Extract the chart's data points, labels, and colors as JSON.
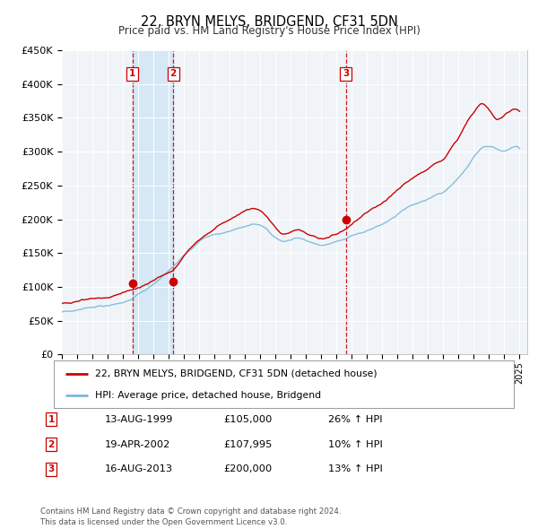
{
  "title": "22, BRYN MELYS, BRIDGEND, CF31 5DN",
  "subtitle": "Price paid vs. HM Land Registry's House Price Index (HPI)",
  "hpi_color": "#7ab8d9",
  "price_color": "#cc0000",
  "sale_marker_color": "#cc0000",
  "bg_color": "#ffffff",
  "plot_bg_color": "#f0f4f8",
  "grid_color": "#ffffff",
  "shaded_region_color": "#d6e8f5",
  "dashed_line_color": "#cc0000",
  "ylim": [
    0,
    450000
  ],
  "yticks": [
    0,
    50000,
    100000,
    150000,
    200000,
    250000,
    300000,
    350000,
    400000,
    450000
  ],
  "ytick_labels": [
    "£0",
    "£50K",
    "£100K",
    "£150K",
    "£200K",
    "£250K",
    "£300K",
    "£350K",
    "£400K",
    "£450K"
  ],
  "sales": [
    {
      "date_num": 1999.617,
      "price": 105000,
      "label": "1"
    },
    {
      "date_num": 2002.298,
      "price": 107995,
      "label": "2"
    },
    {
      "date_num": 2013.617,
      "price": 200000,
      "label": "3"
    }
  ],
  "legend_house_label": "22, BRYN MELYS, BRIDGEND, CF31 5DN (detached house)",
  "legend_hpi_label": "HPI: Average price, detached house, Bridgend",
  "table_rows": [
    {
      "num": "1",
      "date": "13-AUG-1999",
      "price": "£105,000",
      "change": "26% ↑ HPI"
    },
    {
      "num": "2",
      "date": "19-APR-2002",
      "price": "£107,995",
      "change": "10% ↑ HPI"
    },
    {
      "num": "3",
      "date": "16-AUG-2013",
      "price": "£200,000",
      "change": "13% ↑ HPI"
    }
  ],
  "footnote": "Contains HM Land Registry data © Crown copyright and database right 2024.\nThis data is licensed under the Open Government Licence v3.0.",
  "xmin": 1995.0,
  "xmax": 2025.5,
  "hpi_points": [
    [
      1995.0,
      63000
    ],
    [
      1995.5,
      65000
    ],
    [
      1996.0,
      67000
    ],
    [
      1996.5,
      69000
    ],
    [
      1997.0,
      71000
    ],
    [
      1997.5,
      73000
    ],
    [
      1998.0,
      75000
    ],
    [
      1998.5,
      77000
    ],
    [
      1999.0,
      79000
    ],
    [
      1999.5,
      82000
    ],
    [
      2000.0,
      90000
    ],
    [
      2000.5,
      97000
    ],
    [
      2001.0,
      105000
    ],
    [
      2001.5,
      115000
    ],
    [
      2002.0,
      125000
    ],
    [
      2002.5,
      135000
    ],
    [
      2003.0,
      148000
    ],
    [
      2003.5,
      158000
    ],
    [
      2004.0,
      168000
    ],
    [
      2004.5,
      173000
    ],
    [
      2005.0,
      176000
    ],
    [
      2005.5,
      178000
    ],
    [
      2006.0,
      182000
    ],
    [
      2006.5,
      186000
    ],
    [
      2007.0,
      190000
    ],
    [
      2007.5,
      194000
    ],
    [
      2008.0,
      192000
    ],
    [
      2008.5,
      185000
    ],
    [
      2009.0,
      175000
    ],
    [
      2009.5,
      170000
    ],
    [
      2010.0,
      173000
    ],
    [
      2010.5,
      176000
    ],
    [
      2011.0,
      172000
    ],
    [
      2011.5,
      168000
    ],
    [
      2012.0,
      165000
    ],
    [
      2012.5,
      167000
    ],
    [
      2013.0,
      170000
    ],
    [
      2013.5,
      173000
    ],
    [
      2014.0,
      178000
    ],
    [
      2014.5,
      182000
    ],
    [
      2015.0,
      186000
    ],
    [
      2015.5,
      190000
    ],
    [
      2016.0,
      196000
    ],
    [
      2016.5,
      202000
    ],
    [
      2017.0,
      210000
    ],
    [
      2017.5,
      218000
    ],
    [
      2018.0,
      224000
    ],
    [
      2018.5,
      228000
    ],
    [
      2019.0,
      232000
    ],
    [
      2019.5,
      238000
    ],
    [
      2020.0,
      242000
    ],
    [
      2020.5,
      252000
    ],
    [
      2021.0,
      264000
    ],
    [
      2021.5,
      278000
    ],
    [
      2022.0,
      295000
    ],
    [
      2022.5,
      308000
    ],
    [
      2023.0,
      312000
    ],
    [
      2023.5,
      308000
    ],
    [
      2024.0,
      305000
    ],
    [
      2024.5,
      310000
    ],
    [
      2025.0,
      308000
    ]
  ],
  "price_points": [
    [
      1995.0,
      75000
    ],
    [
      1995.5,
      77000
    ],
    [
      1996.0,
      79000
    ],
    [
      1996.5,
      81000
    ],
    [
      1997.0,
      83000
    ],
    [
      1997.5,
      85000
    ],
    [
      1998.0,
      87000
    ],
    [
      1998.5,
      90000
    ],
    [
      1999.0,
      93000
    ],
    [
      1999.5,
      97000
    ],
    [
      2000.0,
      102000
    ],
    [
      2000.5,
      107000
    ],
    [
      2001.0,
      112000
    ],
    [
      2001.5,
      118000
    ],
    [
      2002.0,
      124000
    ],
    [
      2002.5,
      132000
    ],
    [
      2003.0,
      148000
    ],
    [
      2003.5,
      160000
    ],
    [
      2004.0,
      172000
    ],
    [
      2004.5,
      180000
    ],
    [
      2005.0,
      188000
    ],
    [
      2005.5,
      195000
    ],
    [
      2006.0,
      200000
    ],
    [
      2006.5,
      208000
    ],
    [
      2007.0,
      214000
    ],
    [
      2007.5,
      218000
    ],
    [
      2008.0,
      215000
    ],
    [
      2008.5,
      205000
    ],
    [
      2009.0,
      192000
    ],
    [
      2009.5,
      183000
    ],
    [
      2010.0,
      185000
    ],
    [
      2010.5,
      188000
    ],
    [
      2011.0,
      182000
    ],
    [
      2011.5,
      178000
    ],
    [
      2012.0,
      175000
    ],
    [
      2012.5,
      178000
    ],
    [
      2013.0,
      182000
    ],
    [
      2013.5,
      188000
    ],
    [
      2014.0,
      196000
    ],
    [
      2014.5,
      205000
    ],
    [
      2015.0,
      214000
    ],
    [
      2015.5,
      222000
    ],
    [
      2016.0,
      230000
    ],
    [
      2016.5,
      238000
    ],
    [
      2017.0,
      248000
    ],
    [
      2017.5,
      258000
    ],
    [
      2018.0,
      265000
    ],
    [
      2018.5,
      272000
    ],
    [
      2019.0,
      278000
    ],
    [
      2019.5,
      286000
    ],
    [
      2020.0,
      292000
    ],
    [
      2020.5,
      308000
    ],
    [
      2021.0,
      325000
    ],
    [
      2021.5,
      345000
    ],
    [
      2022.0,
      362000
    ],
    [
      2022.5,
      375000
    ],
    [
      2023.0,
      368000
    ],
    [
      2023.5,
      355000
    ],
    [
      2024.0,
      360000
    ],
    [
      2024.5,
      368000
    ],
    [
      2025.0,
      365000
    ]
  ]
}
